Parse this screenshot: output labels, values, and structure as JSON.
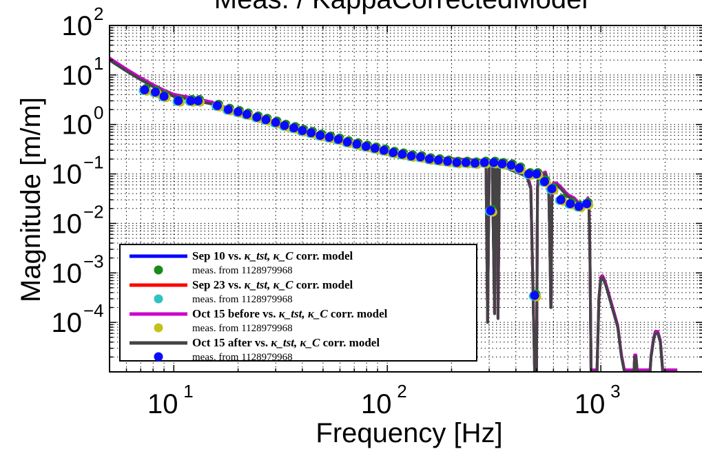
{
  "chart_data": {
    "type": "line",
    "title": "Meas. / KappaCorrectedModel",
    "xlabel": "Frequency [Hz]",
    "ylabel": "Magnitude [m/m]",
    "xscale": "log",
    "yscale": "log",
    "xlim": [
      5,
      3000
    ],
    "ylim": [
      1e-05,
      100
    ],
    "grid": true,
    "legend_position": "bottom-left",
    "x_ticks": [
      {
        "base": "10",
        "exp": "1"
      },
      {
        "base": "10",
        "exp": "2"
      },
      {
        "base": "10",
        "exp": "3"
      }
    ],
    "y_ticks": [
      {
        "base": "10",
        "exp": "−4"
      },
      {
        "base": "10",
        "exp": "−3"
      },
      {
        "base": "10",
        "exp": "−2"
      },
      {
        "base": "10",
        "exp": "−1"
      },
      {
        "base": "10",
        "exp": "0"
      },
      {
        "base": "10",
        "exp": "1"
      },
      {
        "base": "10",
        "exp": "2"
      }
    ],
    "legend": [
      {
        "label_prefix": "Sep 10 vs. ",
        "label_suffix": " corr. model",
        "meas_label": "meas. from 1128979968",
        "line_color": "#0000ff",
        "marker_color": "#1a8a1a"
      },
      {
        "label_prefix": "Sep 23 vs. ",
        "label_suffix": " corr. model",
        "meas_label": "meas. from 1128979968",
        "line_color": "#ff0000",
        "marker_color": "#2ec4c4"
      },
      {
        "label_prefix": "Oct 15 before vs. ",
        "label_suffix": " corr. model",
        "meas_label": "meas. from 1128979968",
        "line_color": "#cc00cc",
        "marker_color": "#c2c21a"
      },
      {
        "label_prefix": "Oct 15 after vs. ",
        "label_suffix": " corr. model",
        "meas_label": "meas. from 1128979968",
        "line_color": "#444444",
        "marker_color": "#0a0aff"
      }
    ],
    "kappa_math": "κ_tst, κ_C",
    "model_curve": {
      "name": "model",
      "x": [
        5,
        6,
        7,
        8,
        9,
        10,
        12,
        15,
        20,
        25,
        30,
        40,
        50,
        60,
        70,
        80,
        100,
        120,
        150,
        180,
        200,
        230,
        260,
        280,
        290,
        295,
        300,
        305,
        310,
        318,
        320,
        328,
        330,
        335,
        340,
        350,
        380,
        400,
        450,
        470,
        480,
        490,
        493,
        500,
        505,
        510,
        520,
        550,
        570,
        580,
        583,
        585,
        590,
        600,
        620,
        650,
        700,
        750,
        780,
        800,
        830,
        850,
        870,
        880,
        890,
        900,
        910,
        930,
        960,
        980,
        1000,
        1010,
        1020,
        1050,
        1080,
        1100,
        1200,
        1250,
        1290,
        1300,
        1320,
        1340,
        1400,
        1430,
        1440,
        1460,
        1480,
        1500,
        1600,
        1700,
        1720,
        1760,
        1780,
        1800,
        1850,
        1900,
        1950,
        1990,
        2000,
        2010,
        2050,
        2100,
        2200,
        2280
      ],
      "y": [
        20,
        12,
        8,
        5.8,
        4.5,
        3.7,
        3.2,
        2.6,
        1.6,
        1.25,
        1.0,
        0.72,
        0.55,
        0.45,
        0.38,
        0.33,
        0.27,
        0.23,
        0.2,
        0.19,
        0.185,
        0.18,
        0.175,
        0.17,
        0.15,
        0.0001,
        0.17,
        0.17,
        0.16,
        0.00015,
        0.18,
        0.16,
        0.00012,
        0.15,
        0.145,
        0.14,
        0.12,
        0.11,
        0.09,
        0.05,
        0.0008,
        1e-05,
        1e-05,
        1e-05,
        0.05,
        0.08,
        0.09,
        0.1,
        0.06,
        0.001,
        0.0002,
        0.0002,
        0.03,
        0.06,
        0.06,
        0.05,
        0.035,
        0.03,
        0.025,
        0.022,
        0.021,
        0.025,
        0.03,
        0.025,
        0.002,
        1e-05,
        1e-05,
        1e-05,
        1e-05,
        0.0003,
        0.00075,
        0.0008,
        0.0008,
        0.0006,
        0.0004,
        0.0003,
        8e-05,
        2e-05,
        1e-05,
        1e-05,
        1e-05,
        1e-05,
        1e-05,
        1e-05,
        2e-05,
        2e-05,
        1e-05,
        1e-05,
        1e-05,
        1e-05,
        2e-05,
        4e-05,
        5e-05,
        6e-05,
        6e-05,
        4e-05,
        1e-05,
        1e-05,
        1e-05,
        1e-05,
        1e-05,
        1e-05,
        1e-05,
        1e-05
      ]
    },
    "measurements": {
      "x": [
        7.3,
        8.2,
        9.0,
        10.5,
        12.0,
        13.0,
        16.0,
        18.0,
        20.0,
        22.0,
        24.5,
        27.0,
        30.0,
        33.0,
        36.5,
        40.0,
        44.0,
        48.5,
        53.5,
        59.0,
        65.0,
        72.0,
        79.5,
        87.5,
        96.5,
        106.5,
        117.5,
        129.5,
        143.0,
        157.5,
        173.5,
        191.5,
        211.5,
        233.5,
        257.5,
        285.0,
        305.0,
        315.0,
        345.0,
        380.0,
        415.0,
        460.0,
        490.0,
        500.0,
        545.0,
        590.0,
        650.0,
        720.0,
        790.0,
        860.0
      ],
      "y": [
        5.0,
        4.5,
        3.7,
        3.0,
        3.0,
        3.0,
        2.4,
        2.0,
        1.8,
        1.6,
        1.4,
        1.25,
        1.1,
        0.95,
        0.85,
        0.75,
        0.68,
        0.6,
        0.55,
        0.5,
        0.44,
        0.4,
        0.36,
        0.33,
        0.3,
        0.27,
        0.25,
        0.23,
        0.22,
        0.2,
        0.19,
        0.18,
        0.17,
        0.17,
        0.165,
        0.17,
        0.018,
        0.17,
        0.16,
        0.15,
        0.13,
        0.1,
        0.00035,
        0.1,
        0.07,
        0.05,
        0.03,
        0.025,
        0.022,
        0.025
      ],
      "colors": [
        "#1a8a1a",
        "#2ec4c4",
        "#c2c21a",
        "#0a0aff"
      ]
    }
  }
}
